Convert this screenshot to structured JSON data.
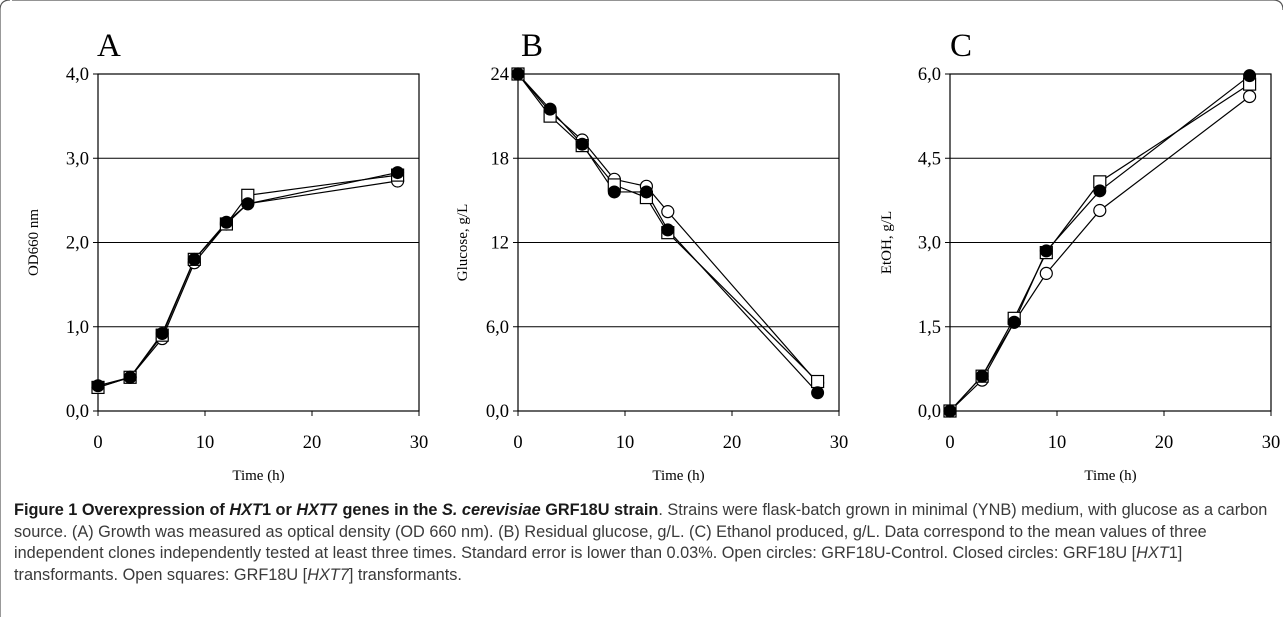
{
  "chart_data": [
    {
      "type": "line",
      "panel": "A",
      "ylabel": "OD660 nm",
      "xlabel": "Time (h)",
      "xlim": [
        0,
        30
      ],
      "ylim": [
        0,
        4
      ],
      "xticks": [
        "0",
        "10",
        "20",
        "30"
      ],
      "yticks": [
        "0,0",
        "1,0",
        "2,0",
        "3,0",
        "4,0"
      ],
      "grid": "horizontal",
      "series": [
        {
          "marker": "open-circle",
          "x": [
            0,
            3,
            6,
            9,
            12,
            14,
            28
          ],
          "y": [
            0.28,
            0.4,
            0.86,
            1.76,
            2.22,
            2.46,
            2.73
          ]
        },
        {
          "marker": "open-square",
          "x": [
            0,
            3,
            6,
            9,
            12,
            14,
            28
          ],
          "y": [
            0.28,
            0.4,
            0.9,
            1.8,
            2.22,
            2.56,
            2.8
          ]
        },
        {
          "marker": "closed-circle",
          "x": [
            0,
            3,
            6,
            9,
            12,
            14,
            28
          ],
          "y": [
            0.3,
            0.4,
            0.92,
            1.8,
            2.24,
            2.46,
            2.83
          ]
        }
      ]
    },
    {
      "type": "line",
      "panel": "B",
      "ylabel": "Glucose, g/L",
      "xlabel": "Time (h)",
      "xlim": [
        0,
        30
      ],
      "ylim": [
        0,
        24
      ],
      "xticks": [
        "0",
        "10",
        "20",
        "30"
      ],
      "yticks": [
        "0,0",
        "6,0",
        "12",
        "18",
        "24"
      ],
      "grid": "horizontal",
      "series": [
        {
          "marker": "open-circle",
          "x": [
            0,
            3,
            6,
            9,
            12,
            14,
            28
          ],
          "y": [
            24.0,
            21.3,
            19.3,
            16.5,
            16.0,
            14.2,
            2.0
          ]
        },
        {
          "marker": "open-square",
          "x": [
            0,
            3,
            6,
            9,
            12,
            14,
            28
          ],
          "y": [
            24.0,
            21.0,
            18.9,
            16.1,
            15.2,
            12.7,
            2.1
          ]
        },
        {
          "marker": "closed-circle",
          "x": [
            0,
            3,
            6,
            9,
            12,
            14,
            28
          ],
          "y": [
            24.0,
            21.5,
            19.0,
            15.6,
            15.6,
            12.9,
            1.3
          ]
        }
      ]
    },
    {
      "type": "line",
      "panel": "C",
      "ylabel": "EtOH, g/L",
      "xlabel": "Time (h)",
      "xlim": [
        0,
        30
      ],
      "ylim": [
        0,
        6
      ],
      "xticks": [
        "0",
        "10",
        "20",
        "30"
      ],
      "yticks": [
        "0,0",
        "1,5",
        "3,0",
        "4,5",
        "6,0"
      ],
      "grid": "horizontal",
      "series": [
        {
          "marker": "open-circle",
          "x": [
            0,
            3,
            6,
            9,
            14,
            28
          ],
          "y": [
            0.0,
            0.55,
            1.58,
            2.45,
            3.57,
            5.6
          ]
        },
        {
          "marker": "open-square",
          "x": [
            0,
            3,
            6,
            9,
            14,
            28
          ],
          "y": [
            0.0,
            0.62,
            1.65,
            2.82,
            4.08,
            5.82
          ]
        },
        {
          "marker": "closed-circle",
          "x": [
            0,
            3,
            6,
            9,
            14,
            28
          ],
          "y": [
            0.0,
            0.62,
            1.58,
            2.85,
            3.92,
            5.97
          ]
        }
      ]
    }
  ],
  "caption": {
    "fig_label": "Figure 1",
    "title_1": "Overexpression of ",
    "title_gene1": "HXT",
    "title_gene1_num": "1",
    "title_2": " or ",
    "title_gene2": "HXT",
    "title_gene2_num": "7",
    "title_3": " genes in the ",
    "title_species": "S. cerevisiae",
    "title_4": " GRF18U strain",
    "body_1": ". Strains were flask-batch grown in minimal (YNB) medium, with glucose as a carbon source. (A) Growth was measured as optical density (OD 660 nm). (B) Residual glucose, g/L. (C) Ethanol produced, g/L. Data correspond to the mean values of three independent clones independently tested at least three times. Standard error is lower than 0.03%. Open circles: GRF18U-Control. Closed circles: GRF18U [",
    "body_gene1": "HXT",
    "body_2": "1] transformants. Open squares: GRF18U [",
    "body_gene2": "HXT7",
    "body_3": "] transformants."
  },
  "colors": {
    "frame": "#555555",
    "line": "#000000",
    "grid": "#000000",
    "caption_text": "#3a3a3a"
  }
}
